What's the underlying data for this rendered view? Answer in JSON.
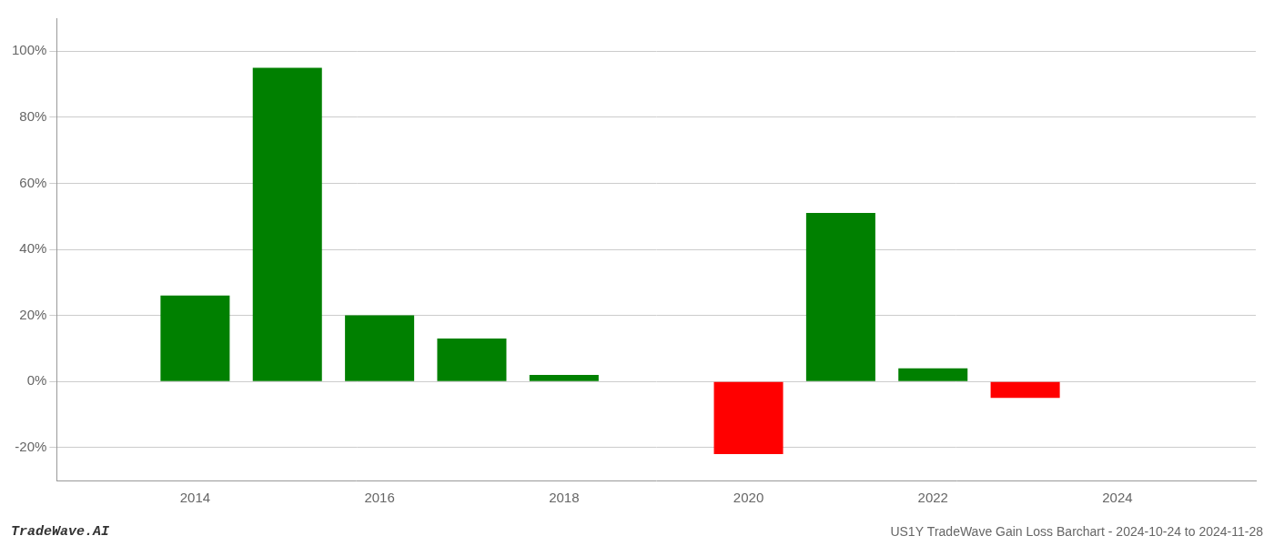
{
  "chart_data": {
    "type": "bar",
    "x": [
      2014,
      2015,
      2016,
      2017,
      2018,
      2020,
      2021,
      2022,
      2023
    ],
    "values": [
      0.26,
      0.95,
      0.2,
      0.13,
      0.02,
      -0.22,
      0.51,
      0.04,
      -0.05
    ],
    "colors": [
      "#008000",
      "#008000",
      "#008000",
      "#008000",
      "#008000",
      "#ff0000",
      "#008000",
      "#008000",
      "#ff0000"
    ],
    "xlim": [
      2012.5,
      2025.5
    ],
    "ylim": [
      -0.3,
      1.1
    ],
    "xticks": [
      2014,
      2016,
      2018,
      2020,
      2022,
      2024
    ],
    "yticks": [
      {
        "value": -0.2,
        "label": "-20%"
      },
      {
        "value": 0.0,
        "label": "0%"
      },
      {
        "value": 0.2,
        "label": "20%"
      },
      {
        "value": 0.4,
        "label": "40%"
      },
      {
        "value": 0.6,
        "label": "60%"
      },
      {
        "value": 0.8,
        "label": "80%"
      },
      {
        "value": 1.0,
        "label": "100%"
      }
    ],
    "grid": true,
    "annotations": [
      "TradeWave.AI",
      "US1Y TradeWave Gain Loss Barchart - 2024-10-24 to 2024-11-28"
    ]
  }
}
